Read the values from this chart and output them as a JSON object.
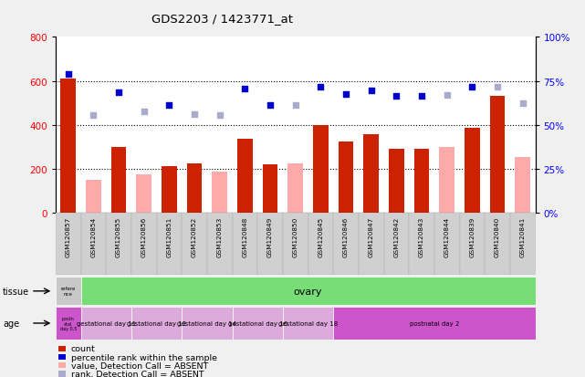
{
  "title": "GDS2203 / 1423771_at",
  "samples": [
    "GSM120857",
    "GSM120854",
    "GSM120855",
    "GSM120856",
    "GSM120851",
    "GSM120852",
    "GSM120853",
    "GSM120848",
    "GSM120849",
    "GSM120850",
    "GSM120845",
    "GSM120846",
    "GSM120847",
    "GSM120842",
    "GSM120843",
    "GSM120844",
    "GSM120839",
    "GSM120840",
    "GSM120841"
  ],
  "count_values": [
    610,
    null,
    300,
    null,
    210,
    225,
    null,
    335,
    220,
    null,
    400,
    325,
    355,
    290,
    290,
    null,
    385,
    530,
    null
  ],
  "count_absent": [
    null,
    150,
    null,
    175,
    null,
    null,
    185,
    null,
    null,
    225,
    null,
    null,
    null,
    null,
    null,
    300,
    null,
    null,
    255
  ],
  "rank_present": [
    630,
    null,
    550,
    null,
    490,
    null,
    null,
    565,
    490,
    null,
    575,
    540,
    555,
    530,
    530,
    null,
    575,
    null,
    null
  ],
  "rank_absent": [
    null,
    445,
    null,
    460,
    null,
    450,
    445,
    null,
    null,
    490,
    null,
    null,
    null,
    null,
    null,
    535,
    null,
    575,
    500
  ],
  "ylim_left": [
    0,
    800
  ],
  "ylim_right": [
    0,
    100
  ],
  "yticks_left": [
    0,
    200,
    400,
    600,
    800
  ],
  "yticks_right": [
    0,
    25,
    50,
    75,
    100
  ],
  "grid_lines": [
    200,
    400,
    600
  ],
  "count_color": "#cc2200",
  "count_absent_color": "#ffaaaa",
  "rank_color": "#0000cc",
  "rank_absent_color": "#aaaacc",
  "tissue_ref_label": "refere\nnce",
  "tissue_ref_color": "#c8c8c8",
  "tissue_ovary_label": "ovary",
  "tissue_ovary_color": "#77dd77",
  "age_ref_label": "postn\natal\nday 0.5",
  "age_ref_color": "#cc55cc",
  "age_groups": [
    {
      "label": "gestational day 11",
      "color": "#ddaadd",
      "start": 1,
      "end": 3
    },
    {
      "label": "gestational day 12",
      "color": "#ddaadd",
      "start": 3,
      "end": 5
    },
    {
      "label": "gestational day 14",
      "color": "#ddaadd",
      "start": 5,
      "end": 7
    },
    {
      "label": "gestational day 16",
      "color": "#ddaadd",
      "start": 7,
      "end": 9
    },
    {
      "label": "gestational day 18",
      "color": "#ddaadd",
      "start": 9,
      "end": 11
    },
    {
      "label": "postnatal day 2",
      "color": "#cc55cc",
      "start": 11,
      "end": 19
    }
  ],
  "legend_items": [
    {
      "color": "#cc2200",
      "label": "count"
    },
    {
      "color": "#0000cc",
      "label": "percentile rank within the sample"
    },
    {
      "color": "#ffaaaa",
      "label": "value, Detection Call = ABSENT"
    },
    {
      "color": "#aaaacc",
      "label": "rank, Detection Call = ABSENT"
    }
  ],
  "fig_bg_color": "#f0f0f0",
  "plot_bg_color": "#ffffff"
}
